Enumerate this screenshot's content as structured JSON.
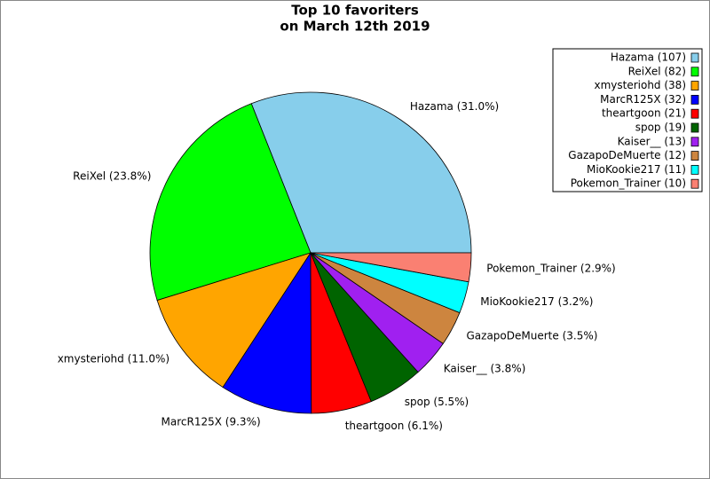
{
  "chart_data": {
    "type": "pie",
    "title": [
      "Top 10 favoriters",
      "on March 12th 2019"
    ],
    "categories": [
      "Hazama (107)",
      "ReiXel (82)",
      "xmysteriohd (38)",
      "MarcR125X (32)",
      "theartgoon (21)",
      "spop (19)",
      "Kaiser__ (13)",
      "GazapoDeMuerte (12)",
      "MioKookie217 (11)",
      "Pokemon_Trainer (10)"
    ],
    "values": [
      107,
      82,
      38,
      32,
      21,
      19,
      13,
      12,
      11,
      10
    ],
    "value_labels": [
      "Hazama (31.0%)",
      "ReiXel (23.8%)",
      "xmysteriohd (11.0%)",
      "MarcR125X (9.3%)",
      "theartgoon (6.1%)",
      "spop (5.5%)",
      "Kaiser__ (3.8%)",
      "GazapoDeMuerte (3.5%)",
      "MioKookie217 (3.2%)",
      "Pokemon_Trainer (2.9%)"
    ],
    "colors": [
      "#87ceeb",
      "#00ff00",
      "#ffa500",
      "#0000ff",
      "#ff0000",
      "#006400",
      "#a020f0",
      "#cd853f",
      "#00ffff",
      "#fa8072"
    ],
    "legend": "upper right"
  }
}
